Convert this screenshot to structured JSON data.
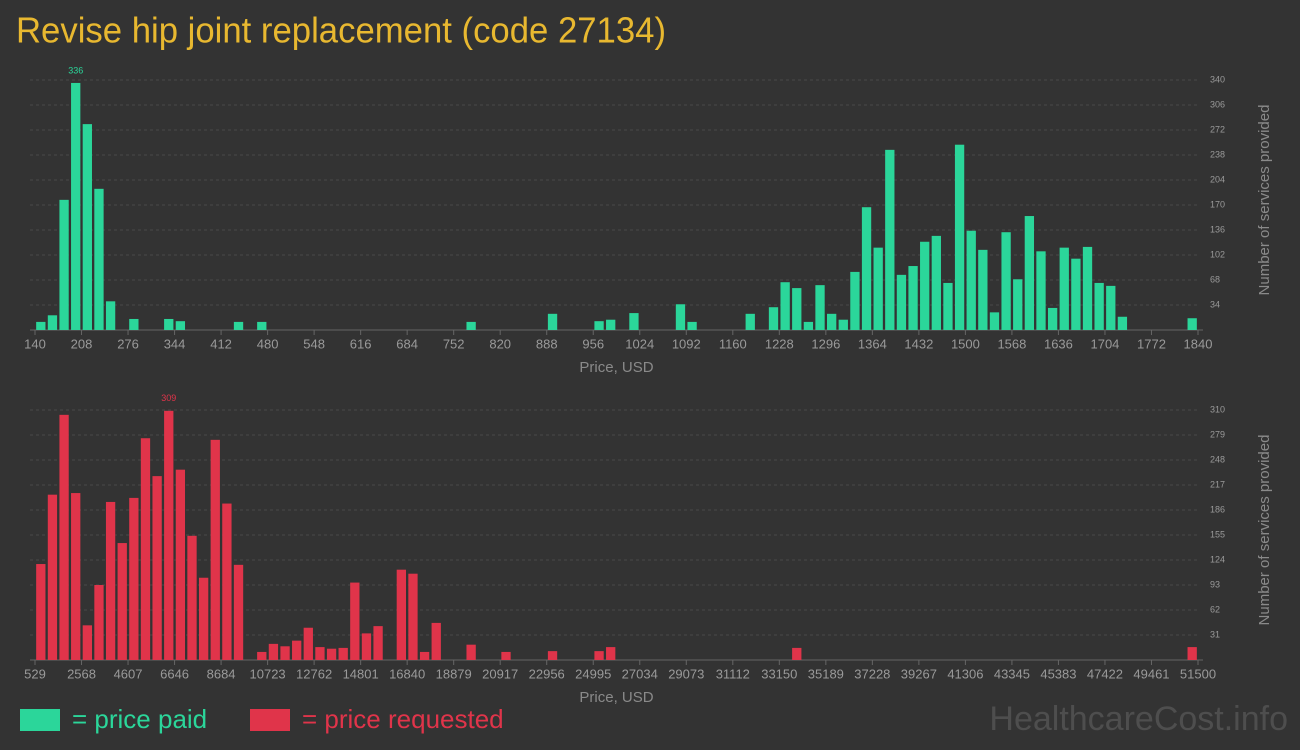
{
  "title": "Revise hip joint replacement (code 27134)",
  "watermark": "HealthcareCost.info",
  "chart_data": [
    {
      "type": "histogram",
      "legend_label": "= price paid",
      "color": "#2bd69a",
      "grid": true,
      "xlabel": "Price, USD",
      "ylabel": "Number of services provided",
      "bins": [
        140,
        157,
        174,
        191,
        208,
        225,
        242,
        259,
        276,
        293,
        310,
        327,
        344,
        361,
        378,
        395,
        412,
        429,
        446,
        463,
        480,
        497,
        514,
        531,
        548,
        565,
        582,
        599,
        616,
        633,
        650,
        667,
        684,
        701,
        718,
        735,
        752,
        769,
        786,
        803,
        820,
        837,
        854,
        871,
        888,
        905,
        922,
        939,
        956,
        973,
        990,
        1007,
        1024,
        1041,
        1058,
        1075,
        1092,
        1109,
        1126,
        1143,
        1160,
        1177,
        1194,
        1211,
        1228,
        1245,
        1262,
        1279,
        1296,
        1313,
        1330,
        1347,
        1364,
        1381,
        1398,
        1415,
        1432,
        1449,
        1466,
        1483,
        1500,
        1517,
        1534,
        1551,
        1568,
        1585,
        1602,
        1619,
        1636,
        1653,
        1670,
        1687,
        1704,
        1721,
        1738,
        1755,
        1772,
        1789,
        1806,
        1823,
        1840
      ],
      "counts": [
        11,
        20,
        177,
        336,
        280,
        192,
        39,
        0,
        15,
        0,
        0,
        15,
        12,
        0,
        0,
        0,
        0,
        11,
        0,
        11,
        0,
        0,
        0,
        0,
        0,
        0,
        0,
        0,
        0,
        0,
        0,
        0,
        0,
        0,
        0,
        0,
        0,
        11,
        0,
        0,
        0,
        0,
        0,
        0,
        22,
        0,
        0,
        0,
        12,
        14,
        0,
        23,
        0,
        0,
        0,
        35,
        11,
        0,
        0,
        0,
        0,
        22,
        0,
        31,
        65,
        57,
        11,
        61,
        22,
        14,
        79,
        167,
        112,
        245,
        75,
        87,
        120,
        128,
        64,
        252,
        135,
        109,
        24,
        133,
        69,
        155,
        107,
        30,
        112,
        97,
        113,
        64,
        60,
        18,
        0,
        0,
        0,
        0,
        0,
        16
      ],
      "xlim": [
        140,
        1840
      ],
      "xticks": [
        140,
        208,
        276,
        344,
        412,
        480,
        548,
        616,
        684,
        752,
        820,
        888,
        956,
        1024,
        1092,
        1160,
        1228,
        1296,
        1364,
        1432,
        1500,
        1568,
        1636,
        1704,
        1772,
        1840
      ],
      "ylim": [
        0,
        340
      ],
      "yticks": [
        34,
        68,
        102,
        136,
        170,
        204,
        238,
        272,
        306,
        340
      ]
    },
    {
      "type": "histogram",
      "legend_label": "= price requested",
      "color": "#e0344a",
      "grid": true,
      "xlabel": "Price, USD",
      "ylabel": "Number of services provided",
      "bins": [
        529,
        1039,
        1548,
        2058,
        2568,
        3078,
        3587,
        4097,
        4607,
        5116,
        5626,
        6136,
        6646,
        7155,
        7665,
        8175,
        8684,
        9194,
        9704,
        10213,
        10723,
        11233,
        11743,
        12252,
        12762,
        13272,
        13781,
        14291,
        14801,
        15311,
        15820,
        16330,
        16840,
        17349,
        17859,
        18369,
        18879,
        19388,
        19898,
        20408,
        20917,
        21427,
        21937,
        22447,
        22956,
        23466,
        23976,
        24485,
        24995,
        25505,
        26015,
        26524,
        27034,
        27544,
        28053,
        28563,
        29073,
        29582,
        30092,
        30602,
        31112,
        31621,
        32131,
        32641,
        33150,
        33660,
        34170,
        34680,
        35189,
        35699,
        36209,
        36718,
        37228,
        37738,
        38248,
        38757,
        39267,
        39777,
        40286,
        40796,
        41306,
        41816,
        42325,
        42835,
        43345,
        43854,
        44364,
        44874,
        45383,
        45893,
        46403,
        46913,
        47422,
        47932,
        48442,
        48951,
        49461,
        49971,
        50481,
        50990,
        51500
      ],
      "counts": [
        119,
        205,
        304,
        207,
        43,
        93,
        196,
        145,
        201,
        275,
        228,
        309,
        236,
        154,
        102,
        273,
        194,
        118,
        0,
        10,
        20,
        17,
        24,
        40,
        16,
        14,
        15,
        96,
        33,
        42,
        0,
        112,
        107,
        10,
        46,
        0,
        0,
        19,
        0,
        0,
        10,
        0,
        0,
        0,
        11,
        0,
        0,
        0,
        11,
        16,
        0,
        0,
        0,
        0,
        0,
        0,
        0,
        0,
        0,
        0,
        0,
        0,
        0,
        0,
        0,
        15,
        0,
        0,
        0,
        0,
        0,
        0,
        0,
        0,
        0,
        0,
        0,
        0,
        0,
        0,
        0,
        0,
        0,
        0,
        0,
        0,
        0,
        0,
        0,
        0,
        0,
        0,
        0,
        0,
        0,
        0,
        0,
        0,
        0,
        16
      ],
      "xlim": [
        529,
        51500
      ],
      "xticks": [
        529,
        2568,
        4607,
        6646,
        8684,
        10723,
        12762,
        14801,
        16840,
        18879,
        20917,
        22956,
        24995,
        27034,
        29073,
        31112,
        33150,
        35189,
        37228,
        39267,
        41306,
        43345,
        45383,
        47422,
        49461,
        51500
      ],
      "ylim": [
        0,
        310
      ],
      "yticks": [
        31,
        62,
        93,
        124,
        155,
        186,
        217,
        248,
        279,
        310
      ]
    }
  ]
}
